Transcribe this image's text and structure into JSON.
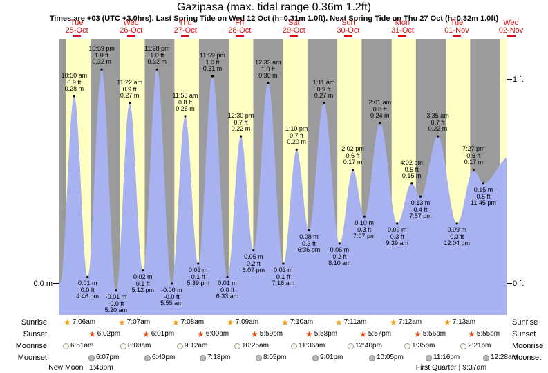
{
  "header": {
    "title": "Gazipasa (max. tidal range 0.36m 1.2ft)",
    "subtitle": "Times are +03 (UTC +3.0hrs). Last Spring Tide on Wed 12 Oct (h=0.31m 1.0ft). Next Spring Tide on Thu 27 Oct (h=0.32m 1.0ft)"
  },
  "days": [
    {
      "weekday": "Tue",
      "date": "25-Oct"
    },
    {
      "weekday": "Wed",
      "date": "26-Oct"
    },
    {
      "weekday": "Thu",
      "date": "27-Oct"
    },
    {
      "weekday": "Fri",
      "date": "28-Oct"
    },
    {
      "weekday": "Sat",
      "date": "29-Oct"
    },
    {
      "weekday": "Sun",
      "date": "30-Oct"
    },
    {
      "weekday": "Mon",
      "date": "31-Oct"
    },
    {
      "weekday": "Tue",
      "date": "01-Nov"
    },
    {
      "weekday": "Wed",
      "date": "02-Nov"
    }
  ],
  "axis": {
    "left": "0.0 m",
    "right_top": "1 ft",
    "right_bottom": "0 ft"
  },
  "chart_data": {
    "type": "area",
    "title": "Tide height curve for Gazipasa",
    "x_range": "Tue 25-Oct ~04:00 through Wed 02-Nov ~10:00 (time axis, one band per day/night)",
    "ylim_ft": [
      -0.15,
      1.2
    ],
    "grid": false,
    "legend": "none",
    "colors": {
      "night": "#9b9b9b",
      "day": "#ffffc4",
      "tide": "#a8b2f0",
      "day_label": "#e01010",
      "label_text": "#000000"
    },
    "tide_events": [
      {
        "day": 0,
        "type": "high",
        "time": "10:50 am",
        "height_ft": "0.9 ft",
        "height_m": "0.28 m"
      },
      {
        "day": 0,
        "type": "low",
        "time": "4:46 pm",
        "height_ft": "0.0 ft",
        "height_m": "0.01 m"
      },
      {
        "day": 0,
        "type": "high",
        "time": "10:59 pm",
        "height_ft": "1.0 ft",
        "height_m": "0.32 m"
      },
      {
        "day": 1,
        "type": "low",
        "time": "5:20 am",
        "height_ft": "-0.0 ft",
        "height_m": "-0.01 m"
      },
      {
        "day": 1,
        "type": "high",
        "time": "11:22 am",
        "height_ft": "0.9 ft",
        "height_m": "0.27 m"
      },
      {
        "day": 1,
        "type": "low",
        "time": "5:12 pm",
        "height_ft": "0.1 ft",
        "height_m": "0.02 m"
      },
      {
        "day": 1,
        "type": "high",
        "time": "11:28 pm",
        "height_ft": "1.0 ft",
        "height_m": "0.32 m"
      },
      {
        "day": 2,
        "type": "low",
        "time": "5:55 am",
        "height_ft": "-0.0 ft",
        "height_m": "-0.00 m"
      },
      {
        "day": 2,
        "type": "high",
        "time": "11:55 am",
        "height_ft": "0.8 ft",
        "height_m": "0.25 m"
      },
      {
        "day": 2,
        "type": "low",
        "time": "5:39 pm",
        "height_ft": "0.1 ft",
        "height_m": "0.03 m"
      },
      {
        "day": 2,
        "type": "high",
        "time": "11:59 pm",
        "height_ft": "1.0 ft",
        "height_m": "0.31 m"
      },
      {
        "day": 3,
        "type": "low",
        "time": "6:33 am",
        "height_ft": "0.0 ft",
        "height_m": "0.01 m"
      },
      {
        "day": 3,
        "type": "high",
        "time": "12:30 pm",
        "height_ft": "0.7 ft",
        "height_m": "0.22 m"
      },
      {
        "day": 3,
        "type": "low",
        "time": "6:07 pm",
        "height_ft": "0.2 ft",
        "height_m": "0.05 m"
      },
      {
        "day": 4,
        "type": "high",
        "time": "12:33 am",
        "height_ft": "1.0 ft",
        "height_m": "0.30 m"
      },
      {
        "day": 4,
        "type": "low",
        "time": "7:16 am",
        "height_ft": "0.1 ft",
        "height_m": "0.03 m"
      },
      {
        "day": 4,
        "type": "high",
        "time": "1:10 pm",
        "height_ft": "0.7 ft",
        "height_m": "0.20 m"
      },
      {
        "day": 4,
        "type": "low",
        "time": "6:36 pm",
        "height_ft": "0.3 ft",
        "height_m": "0.08 m"
      },
      {
        "day": 5,
        "type": "high",
        "time": "1:11 am",
        "height_ft": "0.9 ft",
        "height_m": "0.27 m"
      },
      {
        "day": 5,
        "type": "low",
        "time": "8:10 am",
        "height_ft": "0.2 ft",
        "height_m": "0.06 m"
      },
      {
        "day": 5,
        "type": "high",
        "time": "2:02 pm",
        "height_ft": "0.6 ft",
        "height_m": "0.17 m"
      },
      {
        "day": 5,
        "type": "low",
        "time": "7:07 pm",
        "height_ft": "0.3 ft",
        "height_m": "0.10 m"
      },
      {
        "day": 6,
        "type": "high",
        "time": "2:01 am",
        "height_ft": "0.8 ft",
        "height_m": "0.24 m"
      },
      {
        "day": 6,
        "type": "low",
        "time": "9:39 am",
        "height_ft": "0.3 ft",
        "height_m": "0.09 m"
      },
      {
        "day": 6,
        "type": "high",
        "time": "4:02 pm",
        "height_ft": "0.5 ft",
        "height_m": "0.15 m"
      },
      {
        "day": 6,
        "type": "low",
        "time": "7:57 pm",
        "height_ft": "0.4 ft",
        "height_m": "0.13 m"
      },
      {
        "day": 7,
        "type": "high",
        "time": "3:35 am",
        "height_ft": "0.7 ft",
        "height_m": "0.22 m"
      },
      {
        "day": 7,
        "type": "low",
        "time": "12:04 pm",
        "height_ft": "0.3 ft",
        "height_m": "0.09 m"
      },
      {
        "day": 7,
        "type": "high",
        "time": "7:27 pm",
        "height_ft": "0.6 ft",
        "height_m": "0.17 m"
      },
      {
        "day": 7,
        "type": "low",
        "time": "11:45 pm",
        "height_ft": "0.5 ft",
        "height_m": "0.15 m"
      }
    ],
    "curve_anchors": [
      {
        "t": -1.6,
        "h": 0.29
      },
      {
        "t": 4.55,
        "h": 0.0
      },
      {
        "t": 203.5,
        "h": 0.19
      }
    ]
  },
  "almanac": {
    "rows": [
      {
        "key": "sunrise",
        "label": "Sunrise",
        "icon": "star",
        "entries": [
          {
            "day": 0,
            "time": "7:06am"
          },
          {
            "day": 1,
            "time": "7:07am"
          },
          {
            "day": 2,
            "time": "7:08am"
          },
          {
            "day": 3,
            "time": "7:09am"
          },
          {
            "day": 4,
            "time": "7:10am"
          },
          {
            "day": 5,
            "time": "7:11am"
          },
          {
            "day": 6,
            "time": "7:12am"
          },
          {
            "day": 7,
            "time": "7:13am"
          }
        ]
      },
      {
        "key": "sunset",
        "label": "Sunset",
        "icon": "star",
        "entries": [
          {
            "day": 0,
            "time": "6:02pm"
          },
          {
            "day": 1,
            "time": "6:01pm"
          },
          {
            "day": 2,
            "time": "6:00pm"
          },
          {
            "day": 3,
            "time": "5:59pm"
          },
          {
            "day": 4,
            "time": "5:58pm"
          },
          {
            "day": 5,
            "time": "5:57pm"
          },
          {
            "day": 6,
            "time": "5:56pm"
          },
          {
            "day": 7,
            "time": "5:55pm"
          }
        ]
      },
      {
        "key": "moonrise",
        "label": "Moonrise",
        "icon": "circle",
        "entries": [
          {
            "day": 0,
            "time": "6:51am"
          },
          {
            "day": 1,
            "time": "8:00am"
          },
          {
            "day": 2,
            "time": "9:12am"
          },
          {
            "day": 3,
            "time": "10:25am"
          },
          {
            "day": 4,
            "time": "11:36am"
          },
          {
            "day": 5,
            "time": "12:40pm"
          },
          {
            "day": 6,
            "time": "1:35pm"
          },
          {
            "day": 7,
            "time": "2:21pm"
          }
        ]
      },
      {
        "key": "moonset",
        "label": "Moonset",
        "icon": "circle",
        "entries": [
          {
            "day": 0,
            "time": "6:07pm"
          },
          {
            "day": 1,
            "time": "6:40pm"
          },
          {
            "day": 2,
            "time": "7:18pm"
          },
          {
            "day": 3,
            "time": "8:05pm"
          },
          {
            "day": 4,
            "time": "9:01pm"
          },
          {
            "day": 5,
            "time": "10:05pm"
          },
          {
            "day": 6,
            "time": "11:16pm"
          },
          {
            "day": 8,
            "time": "12:28am"
          }
        ]
      }
    ],
    "phases": [
      {
        "name": "New Moon",
        "time": "1:48pm",
        "day": 0
      },
      {
        "name": "First Quarter",
        "time": "9:37am",
        "day": 7
      }
    ]
  }
}
